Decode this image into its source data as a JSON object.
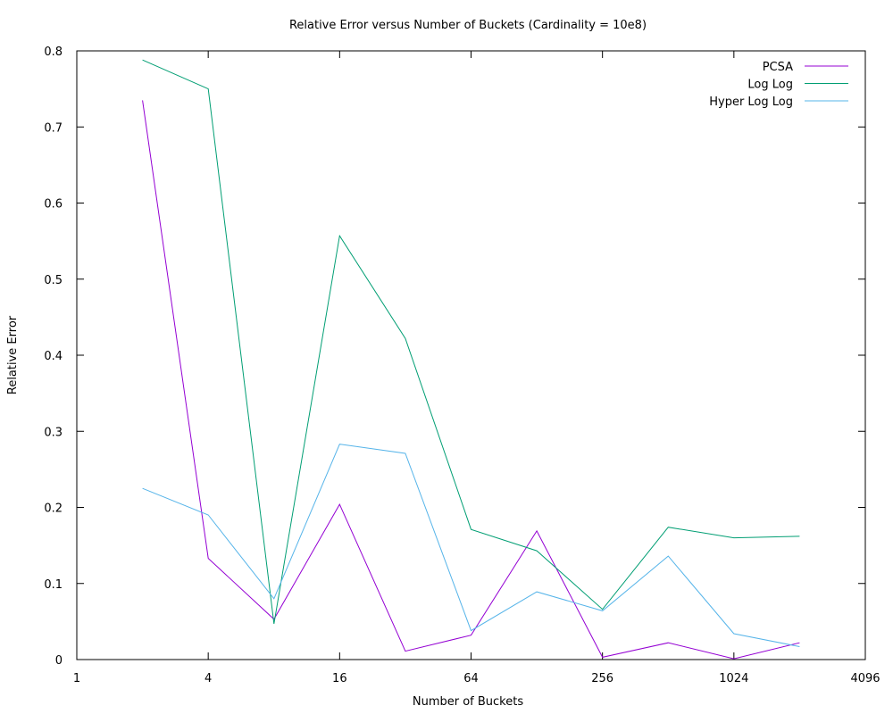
{
  "chart_data": {
    "type": "line",
    "title": "Relative Error versus Number of Buckets (Cardinality = 10e8)",
    "xlabel": "Number of Buckets",
    "ylabel": "Relative Error",
    "xscale": "log2",
    "xlim": [
      1,
      4096
    ],
    "ylim": [
      0,
      0.8
    ],
    "xticks": [
      1,
      4,
      16,
      64,
      256,
      1024,
      4096
    ],
    "xtick_labels": [
      "1",
      "4",
      "16",
      "64",
      "256",
      "1024",
      "4096"
    ],
    "yticks": [
      0,
      0.1,
      0.2,
      0.3,
      0.4,
      0.5,
      0.6,
      0.7,
      0.8
    ],
    "ytick_labels": [
      "0",
      "0.1",
      "0.2",
      "0.3",
      "0.4",
      "0.5",
      "0.6",
      "0.7",
      "0.8"
    ],
    "grid": false,
    "legend_position": "top-right",
    "x": [
      2,
      4,
      8,
      16,
      32,
      64,
      128,
      256,
      512,
      1024,
      2048
    ],
    "series": [
      {
        "name": "PCSA",
        "color": "#9400d3",
        "values": [
          0.735,
          0.133,
          0.053,
          0.204,
          0.011,
          0.032,
          0.169,
          0.003,
          0.022,
          0.001,
          0.022
        ]
      },
      {
        "name": "Log Log",
        "color": "#009e73",
        "values": [
          0.788,
          0.75,
          0.047,
          0.557,
          0.422,
          0.171,
          0.143,
          0.066,
          0.174,
          0.16,
          0.162
        ]
      },
      {
        "name": "Hyper Log Log",
        "color": "#56b4e9",
        "values": [
          0.225,
          0.19,
          0.08,
          0.283,
          0.271,
          0.038,
          0.089,
          0.064,
          0.136,
          0.034,
          0.017
        ]
      }
    ]
  }
}
